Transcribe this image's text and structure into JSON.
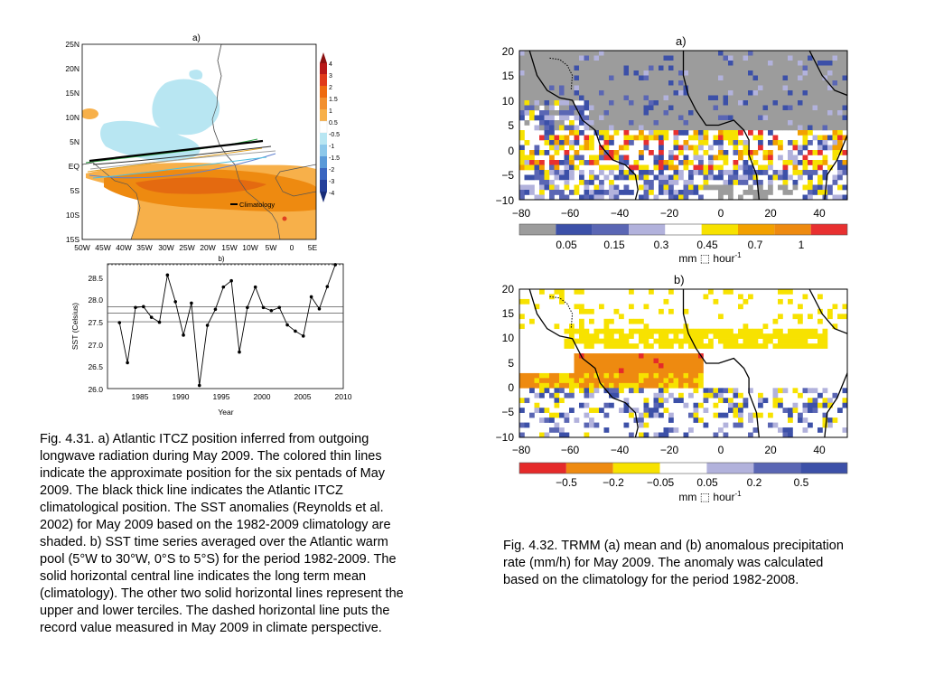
{
  "fig431": {
    "panel_a": {
      "label": "a)",
      "lat_labels": [
        "25N",
        "20N",
        "15N",
        "10N",
        "5N",
        "EQ",
        "5S",
        "10S",
        "15S"
      ],
      "lon_labels": [
        "50W",
        "45W",
        "40W",
        "35W",
        "30W",
        "25W",
        "20W",
        "15W",
        "10W",
        "5W",
        "0",
        "5E"
      ],
      "legend_label": "Climatology",
      "colorbar_labels": [
        "4",
        "3",
        "2",
        "1.5",
        "1",
        "0.5",
        "-0.5",
        "-1",
        "-1.5",
        "-2",
        "-3",
        "-4"
      ]
    },
    "panel_b": {
      "label": "b)",
      "ylabel": "SST (Celsius)",
      "xlabel": "Year",
      "yticks": [
        "28.5",
        "28.0",
        "27.5",
        "27.0",
        "26.5",
        "26.0"
      ],
      "xticks": [
        "1985",
        "1990",
        "1995",
        "2000",
        "2005",
        "2010"
      ]
    },
    "caption": "Fig. 4.31. a) Atlantic ITCZ position inferred from outgoing longwave radiation during May 2009. The colored thin lines indicate the approximate position for the six pentads of May 2009. The black thick line indicates the Atlantic ITCZ climatological position. The SST anomalies (Reynolds et al. 2002) for May 2009 based on the 1982-2009 climatology are shaded. b) SST time series averaged over the Atlantic warm pool (5°W to 30°W, 0°S to 5°S) for the period 1982-2009. The solid horizontal central line indicates the long term mean (climatology). The other two solid horizontal lines represent the upper and lower terciles. The dashed horizontal line puts the record value measured in May 2009 in climate perspective."
  },
  "fig432": {
    "panel_a": {
      "label": "a)",
      "yticks": [
        "20",
        "15",
        "10",
        "5",
        "0",
        "−5",
        "−10"
      ],
      "xticks": [
        "−80",
        "−60",
        "−40",
        "−20",
        "0",
        "20",
        "40"
      ],
      "colorbar_labels": [
        "0.05",
        "0.15",
        "0.3",
        "0.45",
        "0.7",
        "1"
      ],
      "colorbar_colors": [
        "#9c9c9c",
        "#3c50a8",
        "#5a66b4",
        "#b2b2dc",
        "#ffffff",
        "#f7e200",
        "#f2a000",
        "#ee8a10",
        "#e83030"
      ],
      "units": "mm ⬚ hour",
      "units_sup": "-1"
    },
    "panel_b": {
      "label": "b)",
      "yticks": [
        "20",
        "15",
        "10",
        "5",
        "0",
        "−5",
        "−10"
      ],
      "xticks": [
        "−80",
        "−60",
        "−40",
        "−20",
        "0",
        "20",
        "40"
      ],
      "colorbar_labels": [
        "−0.5",
        "−0.2",
        "−0.05",
        "0.05",
        "0.2",
        "0.5"
      ],
      "colorbar_colors": [
        "#e52a2a",
        "#ee8a10",
        "#f7e200",
        "#ffffff",
        "#b2b2dc",
        "#5a66b4",
        "#3c50a8"
      ],
      "units": "mm ⬚ hour",
      "units_sup": "-1"
    },
    "caption": "Fig. 4.32. TRMM (a) mean and (b) anomalous precipitation rate (mm/h) for May 2009. The anomaly was calculated based on the climatology for the period 1982-2008."
  },
  "chart_data": [
    {
      "type": "line",
      "title": "b)",
      "xlabel": "Year",
      "ylabel": "SST (Celsius)",
      "x": [
        1982,
        1983,
        1984,
        1985,
        1986,
        1987,
        1988,
        1989,
        1990,
        1991,
        1992,
        1993,
        1994,
        1995,
        1996,
        1997,
        1998,
        1999,
        2000,
        2001,
        2002,
        2003,
        2004,
        2005,
        2006,
        2007,
        2008,
        2009
      ],
      "values": [
        27.43,
        26.53,
        27.77,
        27.79,
        27.55,
        27.44,
        28.5,
        27.9,
        27.15,
        27.87,
        26.02,
        27.37,
        27.73,
        28.23,
        28.37,
        26.77,
        27.77,
        28.23,
        27.77,
        27.7,
        27.77,
        27.38,
        27.24,
        27.13,
        28.01,
        27.74,
        28.24,
        28.73
      ],
      "hlines": {
        "climatology": 27.64,
        "upper_tercile": 27.79,
        "lower_tercile": 27.45,
        "record_dashed": 28.73
      },
      "xlim": [
        1980.5,
        2010
      ],
      "ylim": [
        25.95,
        28.75
      ]
    }
  ]
}
